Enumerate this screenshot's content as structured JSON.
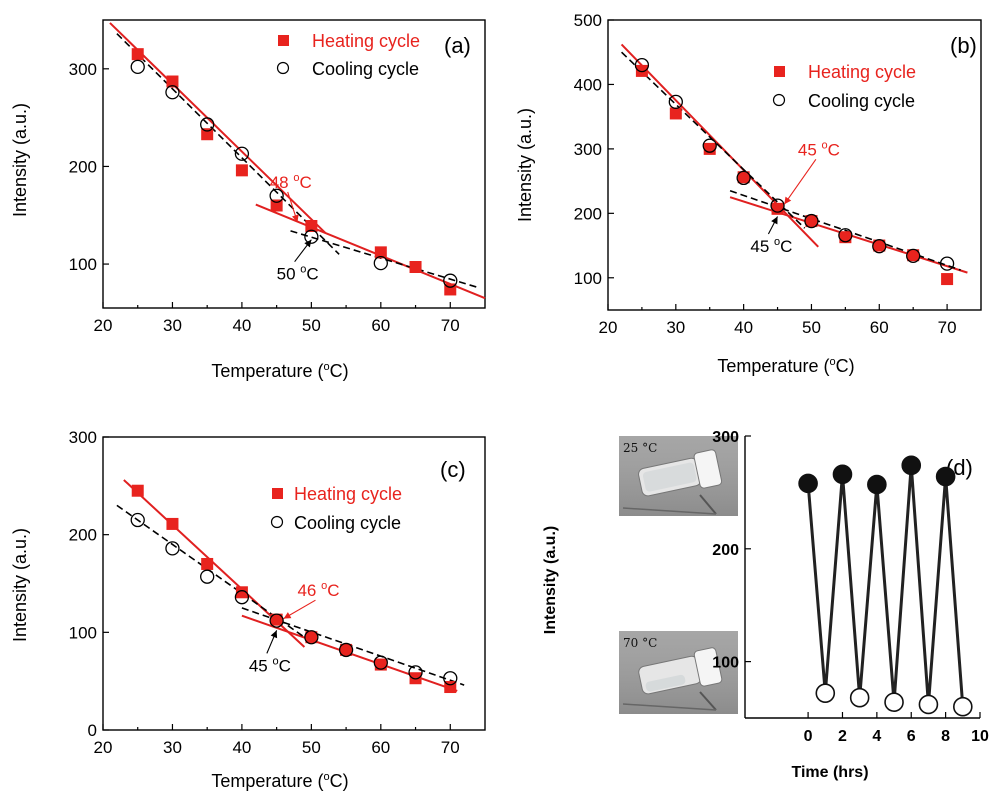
{
  "colors": {
    "heating": "#e8231e",
    "cooling": "#000000",
    "fit_heating": "#e02020",
    "fit_cooling": "#000000",
    "panel_d_line": "#222222",
    "photo_bg": "#a9a9a9",
    "vial": "#e6e6e6"
  },
  "chart_data": [
    {
      "type": "scatter",
      "panel_label": "(a)",
      "xlabel": "Temperature (",
      "xlabel_sup": "o",
      "xlabel_end": "C)",
      "ylabel": "Intensity (a.u.)",
      "xlim": [
        20,
        75
      ],
      "ylim": [
        55,
        350
      ],
      "xticks": [
        20,
        30,
        40,
        50,
        60,
        70
      ],
      "yticks": [
        100,
        200,
        300
      ],
      "xtick_labels": [
        "20",
        "30",
        "40",
        "50",
        "60",
        "70"
      ],
      "ytick_labels": [
        "100",
        "200",
        "300"
      ],
      "legend_position": "top-right",
      "series": [
        {
          "name": "Heating cycle",
          "marker": "filled-square",
          "x": [
            25,
            30,
            35,
            40,
            45,
            50,
            60,
            65,
            70
          ],
          "y": [
            315,
            287,
            233,
            196,
            160,
            139,
            112,
            97,
            74
          ]
        },
        {
          "name": "Cooling cycle",
          "marker": "open-circle",
          "x": [
            25,
            30,
            35,
            40,
            45,
            50,
            60,
            70
          ],
          "y": [
            302,
            276,
            243,
            213,
            170,
            128,
            101,
            83
          ]
        }
      ],
      "fits": [
        {
          "style": "solid-red",
          "x": [
            21,
            52
          ],
          "y": [
            347,
            132
          ]
        },
        {
          "style": "solid-red",
          "x": [
            42,
            75
          ],
          "y": [
            161,
            65
          ]
        },
        {
          "style": "dashed-black",
          "x": [
            22,
            54
          ],
          "y": [
            336,
            110
          ]
        },
        {
          "style": "dashed-black",
          "x": [
            47,
            74
          ],
          "y": [
            134,
            76
          ]
        }
      ],
      "annotations": [
        {
          "text": "48 ",
          "sup": "o",
          "end": "C",
          "color": "red",
          "x": 44,
          "y": 178,
          "arrow_to": [
            48,
            143
          ]
        },
        {
          "text": "50 ",
          "sup": "o",
          "end": "C",
          "color": "black",
          "x": 45,
          "y": 84,
          "arrow_to": [
            50,
            125
          ]
        }
      ]
    },
    {
      "type": "scatter",
      "panel_label": "(b)",
      "xlabel": "Temperature (",
      "xlabel_sup": "o",
      "xlabel_end": "C)",
      "ylabel": "Intensity (a.u.)",
      "xlim": [
        20,
        75
      ],
      "ylim": [
        50,
        500
      ],
      "xticks": [
        20,
        30,
        40,
        50,
        60,
        70
      ],
      "yticks": [
        100,
        200,
        300,
        400,
        500
      ],
      "xtick_labels": [
        "20",
        "30",
        "40",
        "50",
        "60",
        "70"
      ],
      "ytick_labels": [
        "100",
        "200",
        "300",
        "400",
        "500"
      ],
      "legend_position": "top-right",
      "series": [
        {
          "name": "Heating cycle",
          "marker": "filled-square",
          "x": [
            25,
            30,
            35,
            40,
            45,
            50,
            55,
            60,
            65,
            70
          ],
          "y": [
            421,
            355,
            300,
            256,
            207,
            188,
            163,
            150,
            135,
            98
          ]
        },
        {
          "name": "Cooling cycle",
          "marker": "open-circle",
          "x": [
            25,
            30,
            35,
            40,
            45,
            50,
            55,
            60,
            65,
            70
          ],
          "y": [
            430,
            373,
            305,
            255,
            212,
            188,
            166,
            149,
            134,
            122
          ]
        }
      ],
      "fits": [
        {
          "style": "solid-red",
          "x": [
            22,
            51
          ],
          "y": [
            462,
            148
          ]
        },
        {
          "style": "solid-red",
          "x": [
            38,
            73
          ],
          "y": [
            225,
            108
          ]
        },
        {
          "style": "dashed-black",
          "x": [
            22,
            49
          ],
          "y": [
            450,
            177
          ]
        },
        {
          "style": "dashed-black",
          "x": [
            38,
            72
          ],
          "y": [
            235,
            112
          ]
        }
      ],
      "annotations": [
        {
          "text": "45 ",
          "sup": "o",
          "end": "C",
          "color": "red",
          "x": 48,
          "y": 290,
          "arrow_to": [
            46,
            214
          ]
        },
        {
          "text": "45 ",
          "sup": "o",
          "end": "C",
          "color": "black",
          "x": 41,
          "y": 140,
          "arrow_to": [
            45,
            195
          ]
        }
      ]
    },
    {
      "type": "scatter",
      "panel_label": "(c)",
      "xlabel": "Temperature (",
      "xlabel_sup": "o",
      "xlabel_end": "C)",
      "ylabel": "Intensity (a.u.)",
      "xlim": [
        20,
        75
      ],
      "ylim": [
        0,
        300
      ],
      "xticks": [
        20,
        30,
        40,
        50,
        60,
        70
      ],
      "yticks": [
        0,
        100,
        200,
        300
      ],
      "xtick_labels": [
        "20",
        "30",
        "40",
        "50",
        "60",
        "70"
      ],
      "ytick_labels": [
        "0",
        "100",
        "200",
        "300"
      ],
      "legend_position": "top-right",
      "series": [
        {
          "name": "Heating cycle",
          "marker": "filled-square",
          "x": [
            25,
            30,
            35,
            40,
            45,
            50,
            55,
            60,
            65,
            70
          ],
          "y": [
            245,
            211,
            170,
            141,
            113,
            95,
            82,
            67,
            53,
            44
          ]
        },
        {
          "name": "Cooling cycle",
          "marker": "open-circle",
          "x": [
            25,
            30,
            35,
            40,
            45,
            50,
            55,
            60,
            65,
            70
          ],
          "y": [
            215,
            186,
            157,
            136,
            112,
            95,
            82,
            69,
            59,
            53
          ]
        }
      ],
      "fits": [
        {
          "style": "solid-red",
          "x": [
            23,
            49
          ],
          "y": [
            256,
            85
          ]
        },
        {
          "style": "solid-red",
          "x": [
            40,
            71
          ],
          "y": [
            117,
            40
          ]
        },
        {
          "style": "dashed-black",
          "x": [
            22,
            50
          ],
          "y": [
            230,
            90
          ]
        },
        {
          "style": "dashed-black",
          "x": [
            40,
            72
          ],
          "y": [
            125,
            46
          ]
        }
      ],
      "annotations": [
        {
          "text": "46 ",
          "sup": "o",
          "end": "C",
          "color": "red",
          "x": 48,
          "y": 137,
          "arrow_to": [
            46,
            114
          ]
        },
        {
          "text": "45 ",
          "sup": "o",
          "end": "C",
          "color": "black",
          "x": 41,
          "y": 60,
          "arrow_to": [
            45,
            102
          ]
        }
      ]
    },
    {
      "type": "line",
      "panel_label": "(d)",
      "xlabel": "Time (hrs)",
      "ylabel": "Intensity (a.u.)",
      "xlim": [
        -11,
        10
      ],
      "ylim": [
        50,
        300
      ],
      "xticks": [
        0,
        2,
        4,
        6,
        8,
        10
      ],
      "yticks": [
        100,
        200,
        300
      ],
      "xtick_labels": [
        "0",
        "2",
        "4",
        "6",
        "8",
        "10"
      ],
      "ytick_labels": [
        "100",
        "200",
        "300"
      ],
      "series": [
        {
          "x": [
            0,
            1,
            2,
            3,
            4,
            5,
            6,
            7,
            8,
            9
          ],
          "y": [
            258,
            72,
            266,
            68,
            257,
            64,
            274,
            62,
            264,
            60
          ],
          "markers": [
            "filled",
            "open",
            "filled",
            "open",
            "filled",
            "open",
            "filled",
            "open",
            "filled",
            "open"
          ]
        }
      ],
      "insets": [
        {
          "label": "25 °C",
          "state": "gel"
        },
        {
          "label": "70 °C",
          "state": "solution"
        }
      ]
    }
  ]
}
